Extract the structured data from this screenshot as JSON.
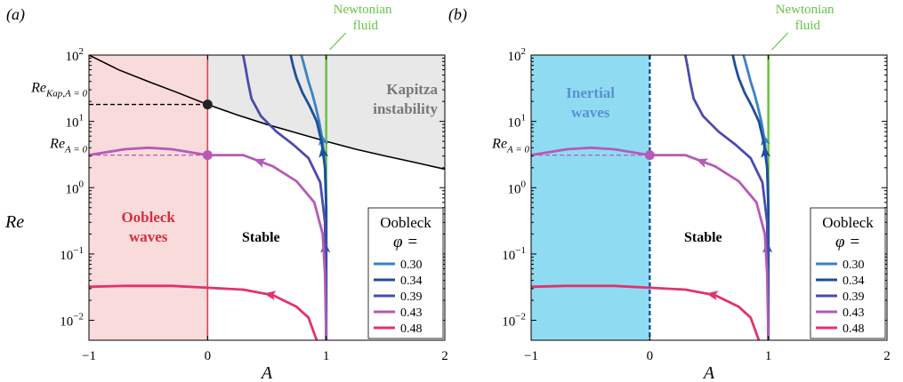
{
  "chart_data": [
    {
      "type": "line",
      "panel_label": "(a)",
      "xlabel": "A",
      "ylabel": "Re",
      "xlim": [
        -1,
        2
      ],
      "ylim": [
        0.005,
        100
      ],
      "y_scale": "log",
      "x_ticks": [
        -1,
        0,
        1,
        2
      ],
      "x_tick_labels": [
        "−1",
        "0",
        "1",
        "2"
      ],
      "y_ticks": [
        0.01,
        0.1,
        1,
        10,
        100
      ],
      "y_tick_labels": [
        {
          "base": "10",
          "exp": "−2"
        },
        {
          "base": "10",
          "exp": "−1"
        },
        {
          "base": "10",
          "exp": "0"
        },
        {
          "base": "10",
          "exp": "1"
        },
        {
          "base": "10",
          "exp": "2"
        }
      ],
      "shaded_region": {
        "x": [
          -1,
          0
        ],
        "color": "#fadbdb",
        "border_color": "#d9444a"
      },
      "kapitza_region_color": "#e8e8e8",
      "region_labels": {
        "left": [
          "Oobleck",
          "waves"
        ],
        "left_color": "#d62d3c",
        "stable": "Stable",
        "kapitza": [
          "Kapitza",
          "instability"
        ],
        "kapitza_color": "#777777"
      },
      "annotations": {
        "newtonian": [
          "Newtonian",
          "fluid"
        ],
        "newtonian_color": "#6cc24a",
        "re_kap_main": "Re",
        "re_kap_sub": "Kap,A = 0",
        "re_kap_value": 18,
        "re_a0_main": "Re",
        "re_a0_sub": "A = 0",
        "re_a0_value": 3.1
      },
      "legend": {
        "title": "Oobleck",
        "title2": "φ =",
        "entries": [
          "0.30",
          "0.34",
          "0.39",
          "0.43",
          "0.48"
        ],
        "position": "bottom-right"
      },
      "kapitza_curve": {
        "x": [
          -1,
          -0.75,
          -0.5,
          -0.25,
          0,
          0.25,
          0.5,
          0.75,
          1,
          1.25,
          1.5,
          1.75,
          2
        ],
        "y": [
          100,
          60,
          40,
          27,
          18,
          12.5,
          9,
          6.7,
          5,
          3.8,
          3,
          2.4,
          1.9
        ]
      },
      "series": [
        {
          "name": "0.30",
          "color": "#3b82c4",
          "arrow_at": 0.7,
          "x": [
            1,
            1,
            0.99,
            0.97,
            0.94,
            0.91,
            0.88,
            0.85,
            0.83,
            0.81,
            0.79
          ],
          "y": [
            0.005,
            0.5,
            2,
            5,
            10,
            17,
            27,
            40,
            55,
            75,
            100
          ]
        },
        {
          "name": "0.34",
          "color": "#1c4f9c",
          "arrow_at": 0.65,
          "x": [
            1,
            1,
            0.99,
            0.96,
            0.92,
            0.86,
            0.8,
            0.75,
            0.72,
            0.7
          ],
          "y": [
            0.005,
            0.5,
            2,
            5,
            10,
            17,
            27,
            45,
            70,
            100
          ]
        },
        {
          "name": "0.39",
          "color": "#4b4bb0",
          "arrow_at": 0.3,
          "x": [
            1,
            0.99,
            0.95,
            0.85,
            0.72,
            0.58,
            0.45,
            0.37,
            0.34,
            0.32,
            0.3
          ],
          "y": [
            0.005,
            0.3,
            1.2,
            2.8,
            4.5,
            7,
            12,
            22,
            40,
            65,
            100
          ]
        },
        {
          "name": "0.43",
          "color": "#b55ab8",
          "arrow_at": 0.55,
          "x": [
            1,
            0.99,
            0.97,
            0.9,
            0.75,
            0.55,
            0.3,
            0,
            -0.3,
            -0.5,
            -0.7,
            -1
          ],
          "y": [
            0.005,
            0.05,
            0.2,
            0.6,
            1.25,
            2.1,
            3.1,
            3.1,
            3.8,
            4,
            3.8,
            3.1
          ]
        },
        {
          "name": "0.48",
          "color": "#e0336e",
          "arrow_at": 0.28,
          "x": [
            0.92,
            0.85,
            0.75,
            0.55,
            0.3,
            0,
            -0.3,
            -0.5,
            -0.7,
            -1
          ],
          "y": [
            0.005,
            0.011,
            0.016,
            0.024,
            0.029,
            0.031,
            0.033,
            0.033,
            0.033,
            0.032
          ]
        }
      ]
    },
    {
      "type": "line",
      "panel_label": "(b)",
      "xlabel": "A",
      "ylabel": "",
      "xlim": [
        -1,
        2
      ],
      "ylim": [
        0.005,
        100
      ],
      "y_scale": "log",
      "x_ticks": [
        -1,
        0,
        1,
        2
      ],
      "x_tick_labels": [
        "−1",
        "0",
        "1",
        "2"
      ],
      "y_ticks": [
        0.01,
        0.1,
        1,
        10,
        100
      ],
      "y_tick_labels": [
        {
          "base": "10",
          "exp": "−2"
        },
        {
          "base": "10",
          "exp": "−1"
        },
        {
          "base": "10",
          "exp": "0"
        },
        {
          "base": "10",
          "exp": "1"
        },
        {
          "base": "10",
          "exp": "2"
        }
      ],
      "shaded_region": {
        "x": [
          -1,
          0
        ],
        "color": "#8fdcf2",
        "border_color": "#1c4f9c"
      },
      "region_labels": {
        "left": [
          "Inertial",
          "waves"
        ],
        "left_color": "#5b8fd4",
        "stable": "Stable"
      },
      "annotations": {
        "newtonian": [
          "Newtonian",
          "fluid"
        ],
        "newtonian_color": "#6cc24a",
        "re_a0_main": "Re",
        "re_a0_sub": "A = 0",
        "re_a0_value": 3.1
      },
      "legend": {
        "title": "Oobleck",
        "title2": "φ =",
        "entries": [
          "0.30",
          "0.34",
          "0.39",
          "0.43",
          "0.48"
        ],
        "position": "bottom-right"
      },
      "series": [
        {
          "name": "0.30",
          "color": "#3b82c4",
          "arrow_at": 0.7,
          "x": [
            1,
            1,
            0.99,
            0.97,
            0.94,
            0.91,
            0.88,
            0.85,
            0.83,
            0.81,
            0.79
          ],
          "y": [
            0.005,
            0.5,
            2,
            5,
            10,
            17,
            27,
            40,
            55,
            75,
            100
          ]
        },
        {
          "name": "0.34",
          "color": "#1c4f9c",
          "arrow_at": 0.65,
          "x": [
            1,
            1,
            0.99,
            0.96,
            0.92,
            0.86,
            0.8,
            0.75,
            0.72,
            0.7
          ],
          "y": [
            0.005,
            0.5,
            2,
            5,
            10,
            17,
            27,
            45,
            70,
            100
          ]
        },
        {
          "name": "0.39",
          "color": "#4b4bb0",
          "arrow_at": 0.3,
          "x": [
            1,
            0.99,
            0.95,
            0.85,
            0.72,
            0.58,
            0.45,
            0.37,
            0.34,
            0.32,
            0.3
          ],
          "y": [
            0.005,
            0.3,
            1.2,
            2.8,
            4.5,
            7,
            12,
            22,
            40,
            65,
            100
          ]
        },
        {
          "name": "0.43",
          "color": "#b55ab8",
          "arrow_at": 0.55,
          "x": [
            1,
            0.99,
            0.97,
            0.9,
            0.75,
            0.55,
            0.3,
            0,
            -0.3,
            -0.5,
            -0.7,
            -1
          ],
          "y": [
            0.005,
            0.05,
            0.2,
            0.6,
            1.25,
            2.1,
            3.1,
            3.1,
            3.8,
            4,
            3.8,
            3.1
          ]
        },
        {
          "name": "0.48",
          "color": "#e0336e",
          "arrow_at": 0.28,
          "x": [
            0.92,
            0.85,
            0.75,
            0.55,
            0.3,
            0,
            -0.3,
            -0.5,
            -0.7,
            -1
          ],
          "y": [
            0.005,
            0.011,
            0.016,
            0.024,
            0.029,
            0.031,
            0.033,
            0.033,
            0.033,
            0.032
          ]
        }
      ]
    }
  ]
}
